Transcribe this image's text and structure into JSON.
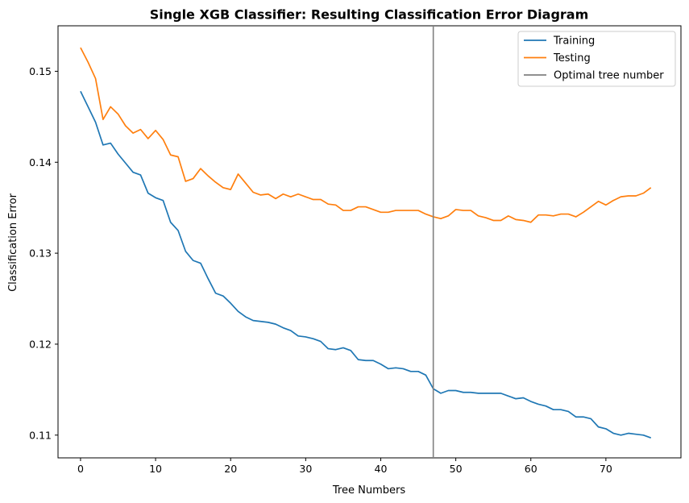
{
  "chart_data": {
    "type": "line",
    "title": "Single XGB Classifier: Resulting Classification Error Diagram",
    "xlabel": "Tree Numbers",
    "ylabel": "Classification Error",
    "xlim": [
      -3,
      80
    ],
    "ylim": [
      0.1075,
      0.155
    ],
    "xticks": [
      0,
      10,
      20,
      30,
      40,
      50,
      60,
      70
    ],
    "yticks": [
      0.11,
      0.12,
      0.13,
      0.14,
      0.15
    ],
    "ytick_labels": [
      "0.11",
      "0.12",
      "0.13",
      "0.14",
      "0.15"
    ],
    "grid": false,
    "legend_position": "top-right",
    "series": [
      {
        "name": "Training",
        "color": "#1f77b4",
        "x": [
          0,
          1,
          2,
          3,
          4,
          5,
          6,
          7,
          8,
          9,
          10,
          11,
          12,
          13,
          14,
          15,
          16,
          17,
          18,
          19,
          20,
          21,
          22,
          23,
          24,
          25,
          26,
          27,
          28,
          29,
          30,
          31,
          32,
          33,
          34,
          35,
          36,
          37,
          38,
          39,
          40,
          41,
          42,
          43,
          44,
          45,
          46,
          47,
          48,
          49,
          50,
          51,
          52,
          53,
          54,
          55,
          56,
          57,
          58,
          59,
          60,
          61,
          62,
          63,
          64,
          65,
          66,
          67,
          68,
          69,
          70,
          71,
          72,
          73,
          74,
          75,
          76
        ],
        "values": [
          0.1478,
          0.1461,
          0.1444,
          0.1419,
          0.1421,
          0.1409,
          0.1399,
          0.1389,
          0.1386,
          0.1366,
          0.1361,
          0.1358,
          0.1334,
          0.1325,
          0.1302,
          0.1292,
          0.1289,
          0.1272,
          0.1256,
          0.1253,
          0.1245,
          0.1236,
          0.123,
          0.1226,
          0.1225,
          0.1224,
          0.1222,
          0.1218,
          0.1215,
          0.1209,
          0.1208,
          0.1206,
          0.1203,
          0.1195,
          0.1194,
          0.1196,
          0.1193,
          0.1183,
          0.1182,
          0.1182,
          0.1178,
          0.1173,
          0.1174,
          0.1173,
          0.117,
          0.117,
          0.1166,
          0.1151,
          0.1146,
          0.1149,
          0.1149,
          0.1147,
          0.1147,
          0.1146,
          0.1146,
          0.1146,
          0.1146,
          0.1143,
          0.114,
          0.1141,
          0.1137,
          0.1134,
          0.1132,
          0.1128,
          0.1128,
          0.1126,
          0.112,
          0.112,
          0.1118,
          0.1109,
          0.1107,
          0.1102,
          0.11,
          0.1102,
          0.1101,
          0.11,
          0.1097
        ]
      },
      {
        "name": "Testing",
        "color": "#ff7f0e",
        "x": [
          0,
          1,
          2,
          3,
          4,
          5,
          6,
          7,
          8,
          9,
          10,
          11,
          12,
          13,
          14,
          15,
          16,
          17,
          18,
          19,
          20,
          21,
          22,
          23,
          24,
          25,
          26,
          27,
          28,
          29,
          30,
          31,
          32,
          33,
          34,
          35,
          36,
          37,
          38,
          39,
          40,
          41,
          42,
          43,
          44,
          45,
          46,
          47,
          48,
          49,
          50,
          51,
          52,
          53,
          54,
          55,
          56,
          57,
          58,
          59,
          60,
          61,
          62,
          63,
          64,
          65,
          66,
          67,
          68,
          69,
          70,
          71,
          72,
          73,
          74,
          75,
          76
        ],
        "values": [
          0.1526,
          0.151,
          0.1492,
          0.1447,
          0.1461,
          0.1453,
          0.144,
          0.1432,
          0.1436,
          0.1426,
          0.1435,
          0.1425,
          0.1408,
          0.1406,
          0.1379,
          0.1382,
          0.1393,
          0.1385,
          0.1378,
          0.1372,
          0.137,
          0.1387,
          0.1377,
          0.1367,
          0.1364,
          0.1365,
          0.136,
          0.1365,
          0.1362,
          0.1365,
          0.1362,
          0.1359,
          0.1359,
          0.1354,
          0.1353,
          0.1347,
          0.1347,
          0.1351,
          0.1351,
          0.1348,
          0.1345,
          0.1345,
          0.1347,
          0.1347,
          0.1347,
          0.1347,
          0.1343,
          0.134,
          0.1338,
          0.1341,
          0.1348,
          0.1347,
          0.1347,
          0.1341,
          0.1339,
          0.1336,
          0.1336,
          0.1341,
          0.1337,
          0.1336,
          0.1334,
          0.1342,
          0.1342,
          0.1341,
          0.1343,
          0.1343,
          0.134,
          0.1345,
          0.1351,
          0.1357,
          0.1353,
          0.1358,
          0.1362,
          0.1363,
          0.1363,
          0.1366,
          0.1372
        ]
      },
      {
        "name": "Optimal tree number",
        "color": "#808080",
        "vline_x": 47
      }
    ]
  }
}
